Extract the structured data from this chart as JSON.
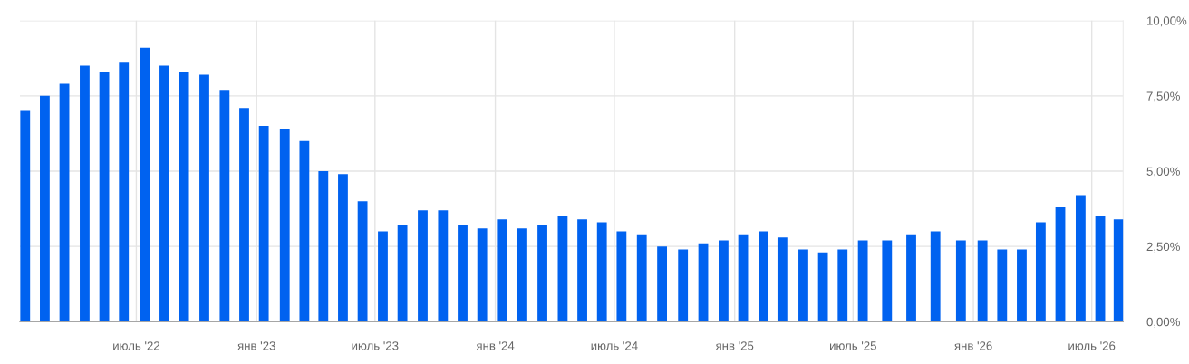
{
  "chart_data": {
    "type": "bar",
    "x": [
      "2022-01-12",
      "2022-02-11",
      "2022-03-13",
      "2022-04-13",
      "2022-05-13",
      "2022-06-12",
      "2022-07-14",
      "2022-08-13",
      "2022-09-12",
      "2022-10-13",
      "2022-11-13",
      "2022-12-13",
      "2023-01-12",
      "2023-02-13",
      "2023-03-15",
      "2023-04-13",
      "2023-05-13",
      "2023-06-12",
      "2023-07-13",
      "2023-08-12",
      "2023-09-12",
      "2023-10-13",
      "2023-11-12",
      "2023-12-12",
      "2024-01-11",
      "2024-02-10",
      "2024-03-13",
      "2024-04-13",
      "2024-05-13",
      "2024-06-12",
      "2024-07-12",
      "2024-08-12",
      "2024-09-12",
      "2024-10-14",
      "2024-11-14",
      "2024-12-15",
      "2025-01-14",
      "2025-02-14",
      "2025-03-15",
      "2025-04-16",
      "2025-05-16",
      "2025-06-15",
      "2025-07-16",
      "2025-08-22",
      "2025-09-28",
      "2025-11-04",
      "2025-12-13",
      "2026-01-15",
      "2026-02-14",
      "2026-03-16",
      "2026-04-14",
      "2026-05-14",
      "2026-06-14",
      "2026-07-14",
      "2026-08-11"
    ],
    "values": [
      7.0,
      7.5,
      7.9,
      8.5,
      8.3,
      8.6,
      9.1,
      8.5,
      8.3,
      8.2,
      7.7,
      7.1,
      6.5,
      6.4,
      6.0,
      5.0,
      4.9,
      4.0,
      3.0,
      3.2,
      3.7,
      3.7,
      3.2,
      3.1,
      3.4,
      3.1,
      3.2,
      3.5,
      3.4,
      3.3,
      3.0,
      2.9,
      2.5,
      2.4,
      2.6,
      2.7,
      2.9,
      3.0,
      2.8,
      2.4,
      2.3,
      2.4,
      2.7,
      2.7,
      2.9,
      3.0,
      2.7,
      2.7,
      2.4,
      2.4,
      3.3,
      3.8,
      4.2,
      3.5,
      3.4
    ],
    "color": "#0062f0",
    "xlim": [
      "2022-01-04",
      "2026-08-18"
    ],
    "xticks": [
      {
        "value": "2022-07",
        "label": "июль '22"
      },
      {
        "value": "2023-01",
        "label": "янв '23"
      },
      {
        "value": "2023-07",
        "label": "июль '23"
      },
      {
        "value": "2024-01",
        "label": "янв '24"
      },
      {
        "value": "2024-07",
        "label": "июль '24"
      },
      {
        "value": "2025-01",
        "label": "янв '25"
      },
      {
        "value": "2025-07",
        "label": "июль '25"
      },
      {
        "value": "2026-01",
        "label": "янв '26"
      },
      {
        "value": "2026-07",
        "label": "июль '26"
      }
    ],
    "ylim": [
      0,
      10
    ],
    "yticks": [
      {
        "value": 0,
        "label": "0,00%"
      },
      {
        "value": 2.5,
        "label": "2,50%"
      },
      {
        "value": 5,
        "label": "5,00%"
      },
      {
        "value": 7.5,
        "label": "7,50%"
      },
      {
        "value": 10,
        "label": "10,00%"
      }
    ],
    "grid": true
  }
}
